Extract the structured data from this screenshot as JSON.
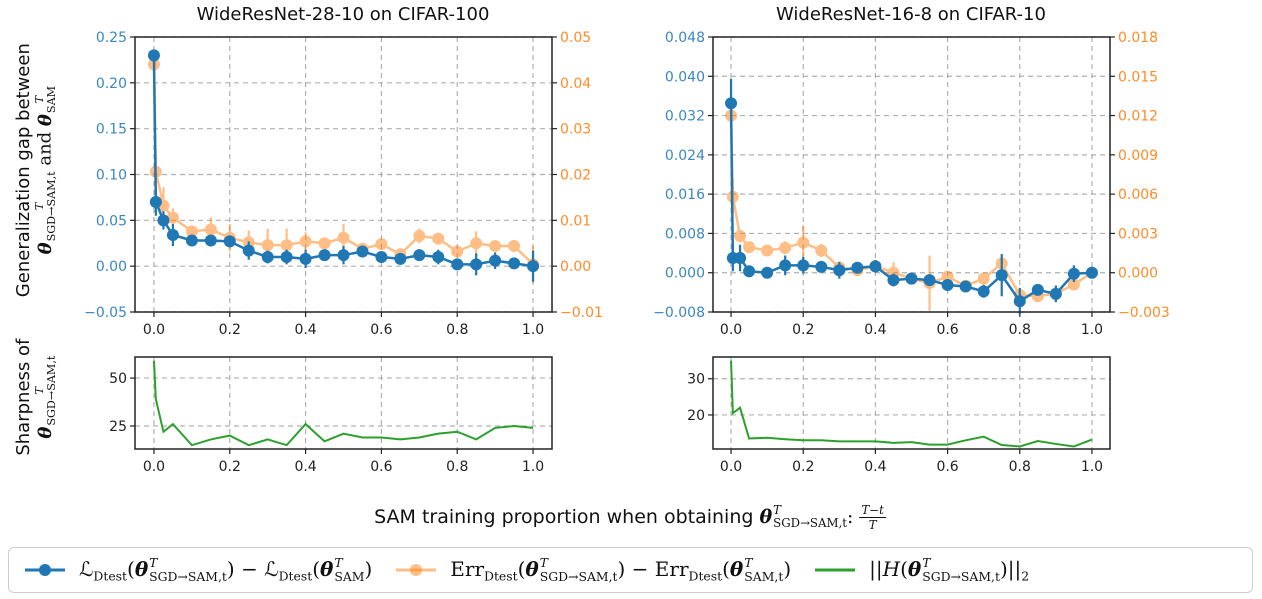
{
  "colors": {
    "loss": "#1f77b4",
    "err": "#ff7f0e",
    "sharpness": "#2ca02c",
    "grid": "#b0b0b0"
  },
  "ylabels": {
    "top": {
      "line1": "Generalization gap between",
      "line2": [
        {
          "b": "θ",
          "sup": "T",
          "sub": "SGD→SAM,t"
        },
        {
          "t": " and "
        },
        {
          "b": "θ",
          "sup": "T",
          "sub": "SAM"
        }
      ]
    },
    "bottom": {
      "line1": "Sharpness of",
      "line2": [
        {
          "b": "θ",
          "sup": "T",
          "sub": "SGD→SAM,t"
        }
      ]
    }
  },
  "xlabel": {
    "text": "SAM training proportion when obtaining ",
    "math": [
      {
        "b": "θ",
        "sup": "T",
        "sub": "SGD→SAM,t"
      },
      {
        "t": ": "
      }
    ],
    "frac_num": "T−t",
    "frac_den": "T"
  },
  "legend": [
    {
      "series": "loss",
      "marker": "circle",
      "label": [
        {
          "t": "ℒ"
        },
        {
          "s": "Dtest"
        },
        {
          "t": "("
        },
        {
          "b": "θ",
          "sup": "T",
          "sub": "SGD→SAM,t"
        },
        {
          "t": ") − ℒ"
        },
        {
          "s": "Dtest"
        },
        {
          "t": "("
        },
        {
          "b": "θ",
          "sup": "T",
          "sub": "SAM"
        },
        {
          "t": ")"
        }
      ]
    },
    {
      "series": "err",
      "marker": "circle",
      "label": [
        {
          "t": "Err"
        },
        {
          "s": "Dtest"
        },
        {
          "t": "("
        },
        {
          "b": "θ",
          "sup": "T",
          "sub": "SGD→SAM,t"
        },
        {
          "t": ") − Err"
        },
        {
          "s": "Dtest"
        },
        {
          "t": "("
        },
        {
          "b": "θ",
          "sup": "T",
          "sub": "SAM,t"
        },
        {
          "t": ")"
        }
      ]
    },
    {
      "series": "sharpness",
      "marker": "none",
      "label": [
        {
          "t": "||"
        },
        {
          "i": "H"
        },
        {
          "t": "("
        },
        {
          "b": "θ",
          "sup": "T",
          "sub": "SGD→SAM,t"
        },
        {
          "t": ")||"
        },
        {
          "s": "2"
        }
      ]
    }
  ],
  "chart_data": [
    {
      "id": "cifar100-gap",
      "type": "line",
      "title": "WideResNet-28-10 on CIFAR-100",
      "x": [
        0,
        0.005,
        0.025,
        0.05,
        0.1,
        0.15,
        0.2,
        0.25,
        0.3,
        0.35,
        0.4,
        0.45,
        0.5,
        0.55,
        0.6,
        0.65,
        0.7,
        0.75,
        0.8,
        0.85,
        0.9,
        0.95,
        1.0
      ],
      "xlim": [
        -0.05,
        1.05
      ],
      "xticks": [
        "0.0",
        "0.2",
        "0.4",
        "0.6",
        "0.8",
        "1.0"
      ],
      "ylim_left": [
        -0.05,
        0.25
      ],
      "yticks_left": [
        "−0.05",
        "0.00",
        "0.05",
        "0.10",
        "0.15",
        "0.20",
        "0.25"
      ],
      "ylim_right": [
        -0.01,
        0.05
      ],
      "yticks_right": [
        "−0.01",
        "0.00",
        "0.01",
        "0.02",
        "0.03",
        "0.04",
        "0.05"
      ],
      "grid": true,
      "series": [
        {
          "key": "loss",
          "axis": "left",
          "values": [
            0.23,
            0.07,
            0.05,
            0.034,
            0.028,
            0.028,
            0.027,
            0.017,
            0.01,
            0.01,
            0.008,
            0.012,
            0.012,
            0.016,
            0.01,
            0.008,
            0.012,
            0.01,
            0.002,
            0.002,
            0.006,
            0.003,
            0.0
          ],
          "yerr": [
            0.003,
            0.015,
            0.01,
            0.012,
            0.003,
            0.003,
            0.006,
            0.01,
            0.007,
            0.008,
            0.01,
            0.006,
            0.01,
            0.003,
            0.004,
            0.004,
            0.004,
            0.008,
            0.004,
            0.012,
            0.009,
            0.004,
            0.017
          ]
        },
        {
          "key": "err",
          "axis": "right",
          "values": [
            0.044,
            0.0206,
            0.0132,
            0.0106,
            0.0076,
            0.008,
            0.0062,
            0.0052,
            0.0046,
            0.0046,
            0.0054,
            0.005,
            0.0062,
            0.0038,
            0.0048,
            0.0026,
            0.0066,
            0.006,
            0.0032,
            0.005,
            0.0044,
            0.0044,
            0.0004
          ],
          "yerr": [
            0.0,
            0.004,
            0.004,
            0.002,
            0.001,
            0.0026,
            0.003,
            0.0026,
            0.0036,
            0.0036,
            0.002,
            0.001,
            0.003,
            0.001,
            0.001,
            0.001,
            0.0016,
            0.001,
            0.001,
            0.0026,
            0.001,
            0.001,
            0.004
          ]
        }
      ]
    },
    {
      "id": "cifar10-gap",
      "type": "line",
      "title": "WideResNet-16-8 on CIFAR-10",
      "x": [
        0,
        0.005,
        0.025,
        0.05,
        0.1,
        0.15,
        0.2,
        0.25,
        0.3,
        0.35,
        0.4,
        0.45,
        0.5,
        0.55,
        0.6,
        0.65,
        0.7,
        0.75,
        0.8,
        0.85,
        0.9,
        0.95,
        1.0
      ],
      "xlim": [
        -0.05,
        1.05
      ],
      "xticks": [
        "0.0",
        "0.2",
        "0.4",
        "0.6",
        "0.8",
        "1.0"
      ],
      "ylim_left": [
        -0.008,
        0.048
      ],
      "yticks_left": [
        "−0.008",
        "0.000",
        "0.008",
        "0.016",
        "0.024",
        "0.032",
        "0.040",
        "0.048"
      ],
      "ylim_right": [
        -0.003,
        0.018
      ],
      "yticks_right": [
        "−0.003",
        "0.000",
        "0.003",
        "0.006",
        "0.009",
        "0.012",
        "0.015",
        "0.018"
      ],
      "grid": true,
      "series": [
        {
          "key": "loss",
          "axis": "left",
          "values": [
            0.0345,
            0.003,
            0.003,
            0.0003,
            0.0,
            0.0015,
            0.0015,
            0.0012,
            0.0005,
            0.001,
            0.0013,
            -0.0015,
            -0.0012,
            -0.0015,
            -0.0025,
            -0.0028,
            -0.0038,
            -0.0005,
            -0.0058,
            -0.0035,
            -0.0043,
            -0.0002,
            0.0
          ],
          "yerr": [
            0.005,
            0.0027,
            0.0027,
            0.001,
            0.0007,
            0.002,
            0.0017,
            0.001,
            0.0017,
            0.0007,
            0.0013,
            0.0013,
            0.0007,
            0.001,
            0.0007,
            0.0007,
            0.0013,
            0.0043,
            0.0027,
            0.001,
            0.0017,
            0.0017,
            0.001
          ]
        },
        {
          "key": "err",
          "axis": "right",
          "values": [
            0.012,
            0.0058,
            0.0028,
            0.00195,
            0.0017,
            0.0019,
            0.0023,
            0.0017,
            0.0004,
            0.0002,
            0.0005,
            0.0,
            -0.00045,
            -0.0008,
            -0.0003,
            -0.001,
            -0.00045,
            0.0007,
            -0.0017,
            -0.0018,
            -0.0016,
            -0.0009,
            0.0
          ],
          "yerr": [
            0.0003,
            0.0013,
            0.0005,
            0.0003,
            0.0003,
            0.0005,
            0.0013,
            0.0005,
            0.0003,
            0.0002,
            0.0003,
            0.0008,
            0.0003,
            0.0021,
            0.0003,
            0.0003,
            0.0005,
            0.0005,
            0.0003,
            0.0003,
            0.0003,
            0.0003,
            0.0003
          ]
        }
      ]
    },
    {
      "id": "cifar100-sharpness",
      "type": "line",
      "x": [
        0,
        0.005,
        0.025,
        0.05,
        0.1,
        0.15,
        0.2,
        0.25,
        0.3,
        0.35,
        0.4,
        0.45,
        0.5,
        0.55,
        0.6,
        0.65,
        0.7,
        0.75,
        0.8,
        0.85,
        0.9,
        0.95,
        1.0
      ],
      "xlim": [
        -0.05,
        1.05
      ],
      "ylim_left": [
        13,
        61
      ],
      "yticks_left": [
        "25",
        "50"
      ],
      "grid": true,
      "series": [
        {
          "key": "sharpness",
          "axis": "left",
          "values": [
            59,
            39,
            22,
            26,
            15,
            18,
            20,
            15,
            18,
            15,
            26,
            17,
            21,
            19,
            19,
            18,
            19,
            21,
            22,
            18,
            24,
            25,
            24
          ]
        }
      ]
    },
    {
      "id": "cifar10-sharpness",
      "type": "line",
      "x": [
        0,
        0.005,
        0.025,
        0.05,
        0.1,
        0.15,
        0.2,
        0.25,
        0.3,
        0.35,
        0.4,
        0.45,
        0.5,
        0.55,
        0.6,
        0.65,
        0.7,
        0.75,
        0.8,
        0.85,
        0.9,
        0.95,
        1.0
      ],
      "xlim": [
        -0.05,
        1.05
      ],
      "ylim_left": [
        10.6,
        36
      ],
      "yticks_left": [
        "20",
        "30"
      ],
      "grid": true,
      "series": [
        {
          "key": "sharpness",
          "axis": "left",
          "values": [
            35,
            20.5,
            22,
            13.5,
            13.7,
            13.3,
            13,
            13,
            12.7,
            12.7,
            12.7,
            12.3,
            12.5,
            11.8,
            11.8,
            13,
            14,
            11.7,
            11.3,
            12.8,
            12,
            11.3,
            13.2
          ]
        }
      ]
    }
  ]
}
